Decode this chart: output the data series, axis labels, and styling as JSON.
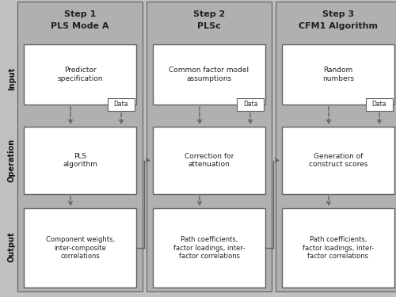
{
  "bg_color": "#c0c0c0",
  "col_bg": "#b0b0b0",
  "box_bg": "#ffffff",
  "box_edge": "#606060",
  "arrow_color": "#606060",
  "columns": [
    {
      "title_line1": "Step 1",
      "title_line2": "PLS Mode A",
      "input_box": "Predictor\nspecification",
      "operation_box": "PLS\nalgorithm",
      "output_box": "Component weights,\ninter-composite\ncorrelations"
    },
    {
      "title_line1": "Step 2",
      "title_line2": "PLSc",
      "input_box": "Common factor model\nassumptions",
      "operation_box": "Correction for\nattenuation",
      "output_box": "Path coefficients,\nfactor loadings, inter-\nfactor correlations"
    },
    {
      "title_line1": "Step 3",
      "title_line2": "CFM1 Algorithm",
      "input_box": "Random\nnumbers",
      "operation_box": "Generation of\nconstruct scores",
      "output_box": "Path coefficients,\nfactor loadings, inter-\nfactor correlations"
    }
  ],
  "row_labels": [
    "Input",
    "Operation",
    "Output"
  ],
  "figure_width": 5.0,
  "figure_height": 3.75,
  "dpi": 100
}
